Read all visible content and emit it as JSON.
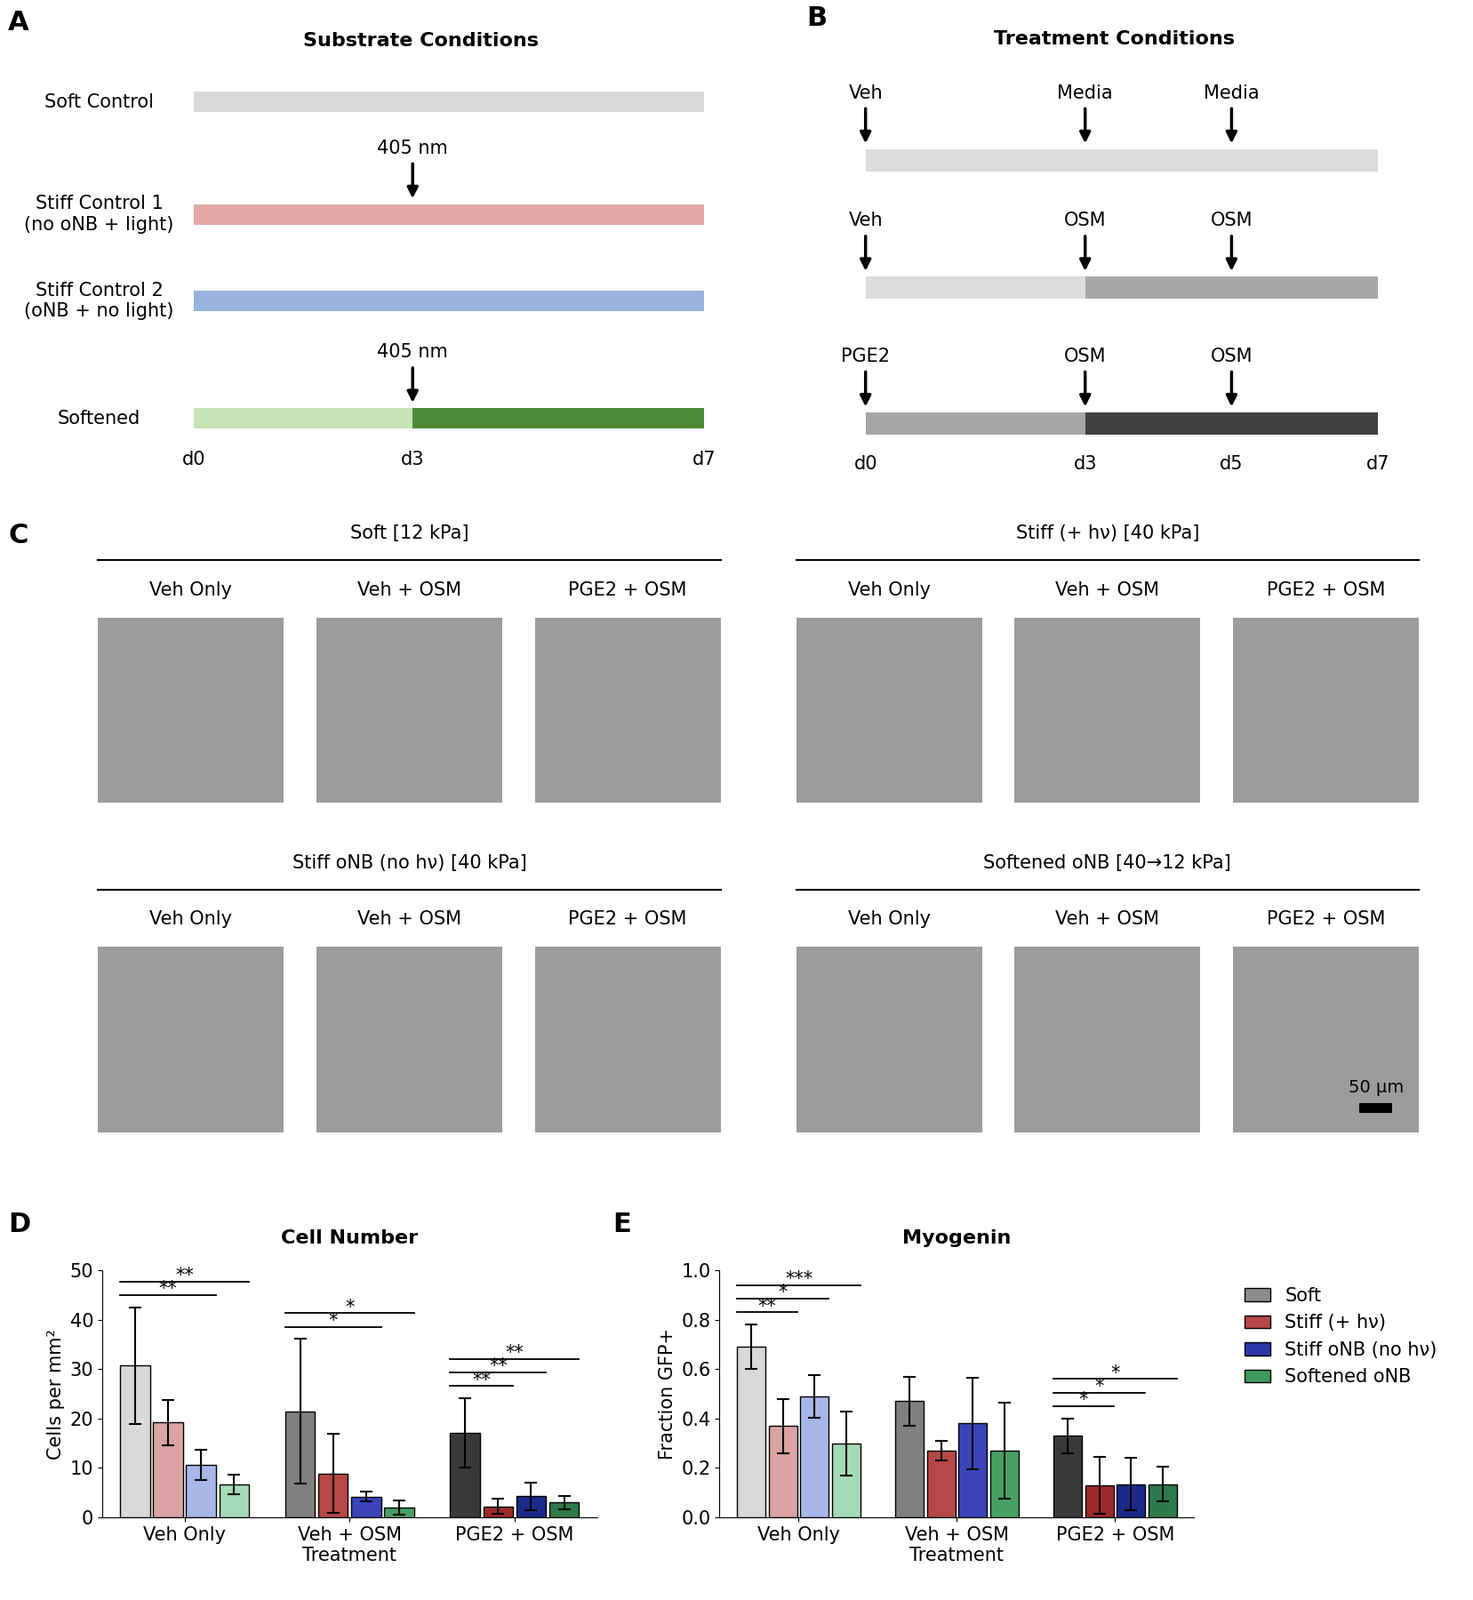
{
  "panel_a": {
    "letter": "A",
    "title": "Substrate Conditions",
    "days": [
      {
        "value": 0,
        "label": "d0"
      },
      {
        "value": 3,
        "label": "d3"
      },
      {
        "value": 7,
        "label": "d7"
      }
    ],
    "rows": [
      {
        "label": "Soft Control",
        "segments": [
          {
            "from": 0,
            "to": 7,
            "color": "#d9d9d9"
          }
        ],
        "events": []
      },
      {
        "label": "Stiff Control 1\n(no oNB + light)",
        "segments": [
          {
            "from": 0,
            "to": 7,
            "color": "#e3a9a9"
          }
        ],
        "events": [
          {
            "day": 3,
            "label": "405 nm"
          }
        ]
      },
      {
        "label": "Stiff Control 2\n(oNB + no light)",
        "segments": [
          {
            "from": 0,
            "to": 7,
            "color": "#99b3e0"
          }
        ],
        "events": []
      },
      {
        "label": "Softened",
        "segments": [
          {
            "from": 0,
            "to": 3,
            "color": "#c5e3b5"
          },
          {
            "from": 3,
            "to": 7,
            "color": "#4e8a35"
          }
        ],
        "events": [
          {
            "day": 3,
            "label": "405 nm"
          }
        ]
      }
    ]
  },
  "panel_b": {
    "letter": "B",
    "title": "Treatment Conditions",
    "days": [
      {
        "value": 0,
        "label": "d0"
      },
      {
        "value": 3,
        "label": "d3"
      },
      {
        "value": 5,
        "label": "d5"
      },
      {
        "value": 7,
        "label": "d7"
      }
    ],
    "rows": [
      {
        "segments": [
          {
            "from": 0,
            "to": 7,
            "color": "#dcdcdc"
          }
        ],
        "events": [
          {
            "day": 0,
            "label": "Veh"
          },
          {
            "day": 3,
            "label": "Media"
          },
          {
            "day": 5,
            "label": "Media"
          }
        ]
      },
      {
        "segments": [
          {
            "from": 0,
            "to": 3,
            "color": "#dcdcdc"
          },
          {
            "from": 3,
            "to": 7,
            "color": "#a6a6a6"
          }
        ],
        "events": [
          {
            "day": 0,
            "label": "Veh"
          },
          {
            "day": 3,
            "label": "OSM"
          },
          {
            "day": 5,
            "label": "OSM"
          }
        ]
      },
      {
        "segments": [
          {
            "from": 0,
            "to": 3,
            "color": "#a6a6a6"
          },
          {
            "from": 3,
            "to": 7,
            "color": "#404040"
          }
        ],
        "events": [
          {
            "day": 0,
            "label": "PGE2"
          },
          {
            "day": 3,
            "label": "OSM"
          },
          {
            "day": 5,
            "label": "OSM"
          }
        ]
      }
    ]
  },
  "panel_c": {
    "letter": "C",
    "scale_bar": "50 µm",
    "blocks": [
      {
        "title": "Soft [12 kPa]",
        "columns": [
          "Veh Only",
          "Veh + OSM",
          "PGE2 + OSM"
        ]
      },
      {
        "title": "Stiff (+ hν) [40 kPa]",
        "columns": [
          "Veh Only",
          "Veh + OSM",
          "PGE2 + OSM"
        ]
      },
      {
        "title": "Stiff oNB (no hν) [40 kPa]",
        "columns": [
          "Veh Only",
          "Veh + OSM",
          "PGE2 + OSM"
        ]
      },
      {
        "title": "Softened oNB [40→12 kPa]",
        "columns": [
          "Veh Only",
          "Veh + OSM",
          "PGE2 + OSM"
        ]
      }
    ]
  },
  "chart_data": [
    {
      "letter": "D",
      "type": "bar",
      "title": "Cell Number",
      "x_label": "Treatment",
      "y_label": "Cells per mm²",
      "categories": [
        "Veh Only",
        "Veh + OSM",
        "PGE2 + OSM"
      ],
      "ylim": [
        0,
        50
      ],
      "yticks": [
        0,
        10,
        20,
        30,
        40,
        50
      ],
      "series": [
        {
          "colors": [
            "#d9d9d9",
            "#808080",
            "#3a3a3a"
          ],
          "values": [
            30.7,
            21.5,
            17.1
          ],
          "errors": [
            11.8,
            14.6,
            7.0
          ]
        },
        {
          "colors": [
            "#dba3a3",
            "#b84848",
            "#9c2a2a"
          ],
          "values": [
            19.2,
            8.9,
            2.2
          ],
          "errors": [
            4.6,
            8.0,
            1.5
          ]
        },
        {
          "colors": [
            "#a9b6e8",
            "#3a44b8",
            "#1c2a8a"
          ],
          "values": [
            10.6,
            4.2,
            4.3
          ],
          "errors": [
            3.1,
            1.0,
            2.8
          ]
        },
        {
          "colors": [
            "#a6d9b5",
            "#46a064",
            "#2f7a4a"
          ],
          "values": [
            6.7,
            2.0,
            3.0
          ],
          "errors": [
            2.0,
            1.5,
            1.3
          ]
        }
      ],
      "significance": [
        {
          "category": 0,
          "from": 0,
          "to": 2,
          "label": "**"
        },
        {
          "category": 0,
          "from": 0,
          "to": 3,
          "label": "**"
        },
        {
          "category": 1,
          "from": 0,
          "to": 2,
          "label": "*"
        },
        {
          "category": 1,
          "from": 0,
          "to": 3,
          "label": "*"
        },
        {
          "category": 2,
          "from": 0,
          "to": 1,
          "label": "**"
        },
        {
          "category": 2,
          "from": 0,
          "to": 2,
          "label": "**"
        },
        {
          "category": 2,
          "from": 0,
          "to": 3,
          "label": "**"
        }
      ]
    },
    {
      "letter": "E",
      "type": "bar",
      "title": "Myogenin",
      "x_label": "Treatment",
      "y_label": "Fraction GFP+",
      "categories": [
        "Veh Only",
        "Veh + OSM",
        "PGE2 + OSM"
      ],
      "ylim": [
        0.0,
        1.0
      ],
      "yticks": [
        0.0,
        0.2,
        0.4,
        0.6,
        0.8,
        1.0
      ],
      "legend": "upper left",
      "series": [
        {
          "name": "Soft",
          "color": "#8c8c8c",
          "colors": [
            "#d9d9d9",
            "#808080",
            "#3a3a3a"
          ],
          "values": [
            0.69,
            0.47,
            0.33
          ],
          "errors": [
            0.09,
            0.1,
            0.07
          ]
        },
        {
          "name": "Stiff (+ hν)",
          "color": "#b84848",
          "colors": [
            "#dba3a3",
            "#b84848",
            "#9c2a2a"
          ],
          "values": [
            0.37,
            0.27,
            0.13
          ],
          "errors": [
            0.11,
            0.04,
            0.115
          ]
        },
        {
          "name": "Stiff oNB (no hν)",
          "color": "#2a36a8",
          "colors": [
            "#a9b6e8",
            "#3a44b8",
            "#1c2a8a"
          ],
          "values": [
            0.49,
            0.38,
            0.135
          ],
          "errors": [
            0.085,
            0.185,
            0.105
          ]
        },
        {
          "name": "Softened oNB",
          "color": "#3d9a5c",
          "colors": [
            "#a6d9b5",
            "#46a064",
            "#2f7a4a"
          ],
          "values": [
            0.3,
            0.27,
            0.135
          ],
          "errors": [
            0.13,
            0.195,
            0.07
          ]
        }
      ],
      "significance": [
        {
          "category": 0,
          "from": 0,
          "to": 1,
          "label": "**"
        },
        {
          "category": 0,
          "from": 0,
          "to": 2,
          "label": "*"
        },
        {
          "category": 0,
          "from": 0,
          "to": 3,
          "label": "***"
        },
        {
          "category": 2,
          "from": 0,
          "to": 1,
          "label": "*"
        },
        {
          "category": 2,
          "from": 0,
          "to": 2,
          "label": "*"
        },
        {
          "category": 2,
          "from": 0,
          "to": 3,
          "label": "*"
        }
      ]
    }
  ]
}
